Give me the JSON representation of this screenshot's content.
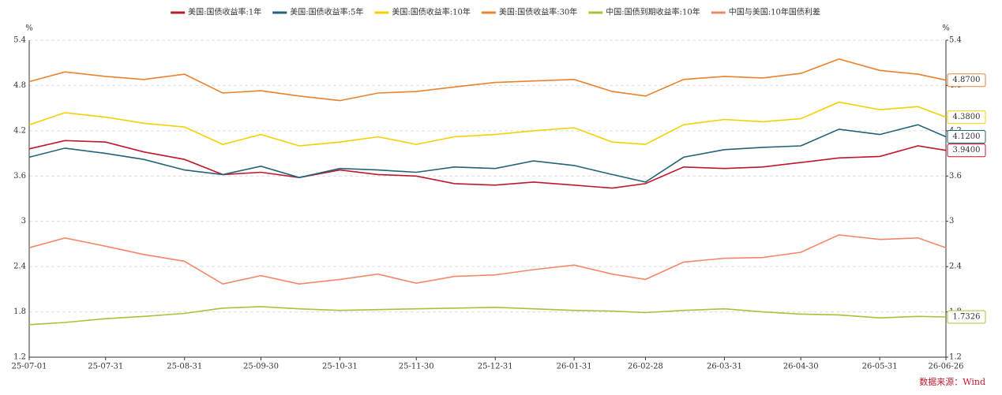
{
  "chart_data": {
    "type": "line",
    "y_unit": "%",
    "y2_unit": "%",
    "source": "数据来源：Wind",
    "x": [
      "25-07-01",
      "25-07-15",
      "25-07-31",
      "25-08-15",
      "25-08-31",
      "25-09-15",
      "25-09-30",
      "25-10-15",
      "25-10-31",
      "25-11-15",
      "25-11-30",
      "25-12-15",
      "25-12-31",
      "26-01-15",
      "26-01-31",
      "26-02-15",
      "26-02-28",
      "26-03-15",
      "26-03-31",
      "26-04-15",
      "26-04-30",
      "26-05-15",
      "26-05-31",
      "26-06-15",
      "26-06-26"
    ],
    "xlim": [
      "25-07-01",
      "26-06-26"
    ],
    "xticks": [
      "25-07-01",
      "25-07-31",
      "25-08-31",
      "25-09-30",
      "25-10-31",
      "25-11-30",
      "25-12-31",
      "26-01-31",
      "26-02-28",
      "26-03-31",
      "26-04-30",
      "26-05-31",
      "26-06-26"
    ],
    "ylim": [
      1.2,
      5.4
    ],
    "yticks": [
      1.2,
      1.8,
      2.4,
      3,
      3.6,
      4.2,
      4.8,
      5.4
    ],
    "y2lim": [
      1.2,
      5.4
    ],
    "y2ticks": [
      1.2,
      1.8,
      2.4,
      3,
      3.6,
      4.2,
      4.8,
      5.4
    ],
    "grid": true,
    "series": [
      {
        "name": "美国:国债收益率:1年",
        "color": "#c0172d",
        "end_label": "3.9400",
        "values": [
          3.96,
          4.07,
          4.05,
          3.92,
          3.82,
          3.62,
          3.65,
          3.58,
          3.68,
          3.62,
          3.6,
          3.5,
          3.48,
          3.52,
          3.48,
          3.44,
          3.5,
          3.72,
          3.7,
          3.72,
          3.78,
          3.84,
          3.86,
          4.0,
          3.94
        ]
      },
      {
        "name": "美国:国债收益率:5年",
        "color": "#23637a",
        "end_label": "4.1200",
        "values": [
          3.85,
          3.97,
          3.9,
          3.82,
          3.68,
          3.62,
          3.73,
          3.58,
          3.7,
          3.68,
          3.65,
          3.72,
          3.7,
          3.8,
          3.74,
          3.62,
          3.52,
          3.85,
          3.95,
          3.98,
          4.0,
          4.22,
          4.15,
          4.28,
          4.12
        ]
      },
      {
        "name": "美国:国债收益率:10年",
        "color": "#f5d000",
        "end_label": "4.3800",
        "values": [
          4.28,
          4.44,
          4.38,
          4.3,
          4.25,
          4.02,
          4.15,
          4.0,
          4.05,
          4.12,
          4.02,
          4.12,
          4.15,
          4.2,
          4.24,
          4.05,
          4.02,
          4.28,
          4.35,
          4.32,
          4.36,
          4.58,
          4.48,
          4.52,
          4.38
        ]
      },
      {
        "name": "美国:国债收益率:30年",
        "color": "#e8822b",
        "end_label": "4.8700",
        "values": [
          4.85,
          4.98,
          4.92,
          4.88,
          4.95,
          4.7,
          4.73,
          4.66,
          4.6,
          4.7,
          4.72,
          4.78,
          4.84,
          4.86,
          4.88,
          4.72,
          4.66,
          4.88,
          4.92,
          4.9,
          4.96,
          5.15,
          5.0,
          4.95,
          4.87
        ]
      },
      {
        "name": "中国:国债到期收益率:10年",
        "color": "#a8c23a",
        "end_label": "1.7326",
        "values": [
          1.63,
          1.66,
          1.71,
          1.74,
          1.78,
          1.85,
          1.87,
          1.84,
          1.82,
          1.83,
          1.84,
          1.85,
          1.86,
          1.84,
          1.82,
          1.81,
          1.79,
          1.82,
          1.84,
          1.8,
          1.77,
          1.76,
          1.72,
          1.74,
          1.7326
        ]
      },
      {
        "name": "中国与美国:10年国债利差",
        "color": "#f4876a",
        "values": [
          2.65,
          2.78,
          2.67,
          2.56,
          2.47,
          2.17,
          2.28,
          2.17,
          2.23,
          2.3,
          2.18,
          2.27,
          2.29,
          2.36,
          2.42,
          2.3,
          2.23,
          2.46,
          2.51,
          2.52,
          2.59,
          2.82,
          2.76,
          2.78,
          2.65
        ]
      }
    ]
  }
}
